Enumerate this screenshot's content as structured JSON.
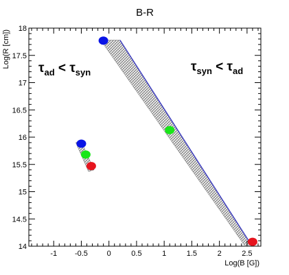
{
  "chart_data": {
    "type": "scatter",
    "title": "B-R",
    "xlabel": "Log(B [G])",
    "ylabel": "Log(R [cm])",
    "xlim": [
      -1.45,
      2.75
    ],
    "ylim": [
      14.0,
      18.0
    ],
    "x_ticks": [
      "-1",
      "-0.5",
      "0",
      "0.5",
      "1",
      "1.5",
      "2",
      "2.5"
    ],
    "y_ticks": [
      "14",
      "14.5",
      "15",
      "15.5",
      "16",
      "16.5",
      "17",
      "17.5",
      "18"
    ],
    "grid": false,
    "legend": "none",
    "annotations": [
      {
        "sym": "τ",
        "sub": "ad",
        "op": " < ",
        "sym2": "τ",
        "sub2": "syn"
      },
      {
        "sym": "τ",
        "sub": "syn",
        "op": " < ",
        "sym2": "τ",
        "sub2": "ad"
      }
    ],
    "bands": [
      {
        "polygon": [
          [
            -0.15,
            17.78
          ],
          [
            0.2,
            17.78
          ],
          [
            2.58,
            14.02
          ],
          [
            2.45,
            14.02
          ]
        ]
      },
      {
        "polygon": [
          [
            -0.6,
            15.9
          ],
          [
            -0.5,
            15.92
          ],
          [
            -0.27,
            15.4
          ],
          [
            -0.37,
            15.37
          ]
        ]
      }
    ],
    "lines": [
      {
        "color": "#4040c0",
        "points": [
          [
            0.2,
            17.78
          ],
          [
            2.58,
            14.02
          ]
        ]
      }
    ],
    "points": [
      {
        "x": -0.1,
        "y": 17.77,
        "color": "#0a14e6"
      },
      {
        "x": 1.1,
        "y": 16.13,
        "color": "#19e619"
      },
      {
        "x": 2.6,
        "y": 14.08,
        "color": "#e6141e"
      },
      {
        "x": -0.5,
        "y": 15.88,
        "color": "#0a14e6"
      },
      {
        "x": -0.42,
        "y": 15.68,
        "color": "#19e619"
      },
      {
        "x": -0.32,
        "y": 15.47,
        "color": "#e6141e"
      }
    ]
  }
}
